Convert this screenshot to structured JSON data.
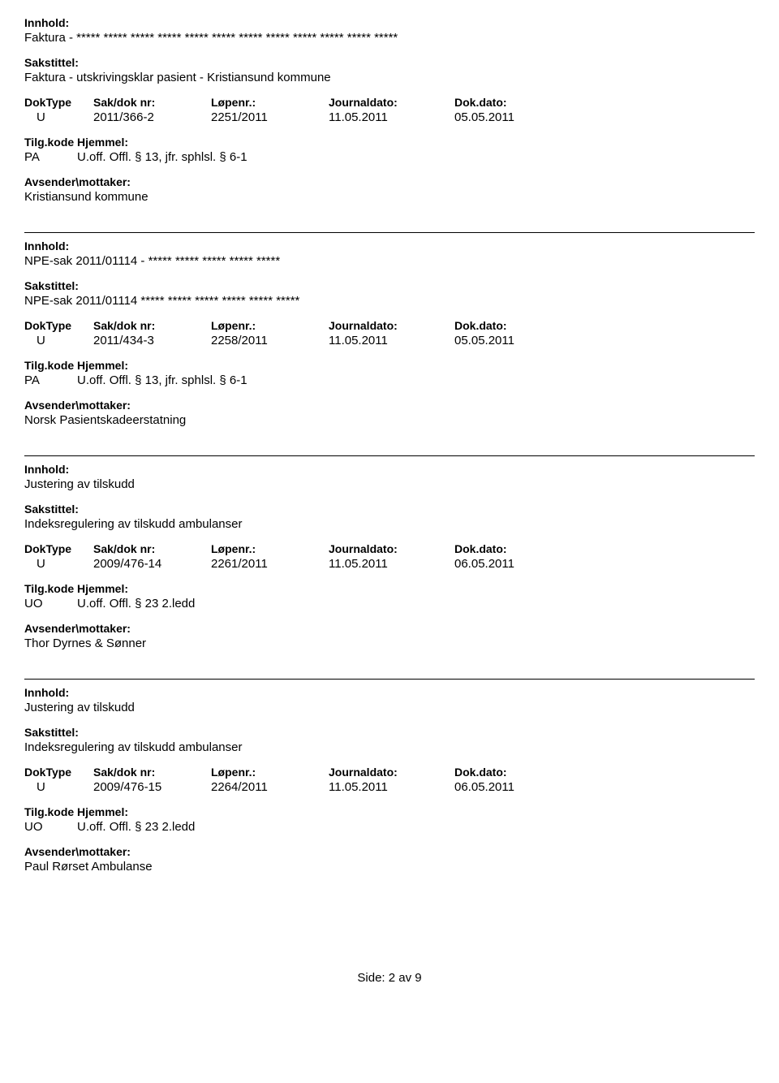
{
  "labels": {
    "innhold": "Innhold:",
    "sakstittel": "Sakstittel:",
    "doktype": "DokType",
    "sakdoknr": "Sak/dok nr:",
    "lopenr": "Løpenr.:",
    "journaldato": "Journaldato:",
    "dokdato": "Dok.dato:",
    "tilgkode": "Tilg.kode",
    "hjemmel": "Hjemmel:",
    "avsender": "Avsender\\mottaker:"
  },
  "entries": [
    {
      "innhold": "Faktura  - ***** ***** ***** ***** ***** ***** ***** ***** ***** ***** ***** *****",
      "sakstittel": "Faktura - utskrivingsklar pasient - Kristiansund kommune",
      "doktype": "U",
      "sakdoknr": "2011/366-2",
      "lopenr": "2251/2011",
      "journaldato": "11.05.2011",
      "dokdato": "05.05.2011",
      "tilgkode": "PA",
      "hjemmel": "U.off. Offl. § 13, jfr. sphlsl. § 6-1",
      "avsender": "Kristiansund kommune"
    },
    {
      "innhold": "NPE-sak 2011/01114 - ***** ***** ***** ***** *****",
      "sakstittel": "NPE-sak 2011/01114 ***** ***** ***** ***** ***** *****",
      "doktype": "U",
      "sakdoknr": "2011/434-3",
      "lopenr": "2258/2011",
      "journaldato": "11.05.2011",
      "dokdato": "05.05.2011",
      "tilgkode": "PA",
      "hjemmel": "U.off. Offl. § 13, jfr. sphlsl. § 6-1",
      "avsender": "Norsk Pasientskadeerstatning"
    },
    {
      "innhold": "Justering av tilskudd",
      "sakstittel": "Indeksregulering av tilskudd ambulanser",
      "doktype": "U",
      "sakdoknr": "2009/476-14",
      "lopenr": "2261/2011",
      "journaldato": "11.05.2011",
      "dokdato": "06.05.2011",
      "tilgkode": "UO",
      "hjemmel": "U.off. Offl. § 23 2.ledd",
      "avsender": "Thor Dyrnes & Sønner"
    },
    {
      "innhold": "Justering av tilskudd",
      "sakstittel": "Indeksregulering av tilskudd ambulanser",
      "doktype": "U",
      "sakdoknr": "2009/476-15",
      "lopenr": "2264/2011",
      "journaldato": "11.05.2011",
      "dokdato": "06.05.2011",
      "tilgkode": "UO",
      "hjemmel": "U.off. Offl. § 23 2.ledd",
      "avsender": "Paul Rørset Ambulanse"
    }
  ],
  "footer": {
    "text": "Side:  2  av  9"
  }
}
